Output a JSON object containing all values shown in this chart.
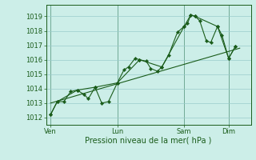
{
  "bg_color": "#cceee8",
  "grid_color": "#99cccc",
  "line_color": "#1a5c1a",
  "marker_color": "#1a5c1a",
  "xlabel": "Pression niveau de la mer( hPa )",
  "ylim": [
    1011.5,
    1019.8
  ],
  "yticks": [
    1012,
    1013,
    1014,
    1015,
    1016,
    1017,
    1018,
    1019
  ],
  "day_labels": [
    "Ven",
    "Lun",
    "Sam",
    "Dim"
  ],
  "day_positions": [
    0,
    3,
    6,
    8
  ],
  "x_vlines": [
    0,
    3,
    6,
    8
  ],
  "xlim": [
    -0.2,
    9.0
  ],
  "series1": [
    [
      0.0,
      1012.2
    ],
    [
      0.3,
      1013.1
    ],
    [
      0.6,
      1013.1
    ],
    [
      0.9,
      1013.8
    ],
    [
      1.2,
      1013.9
    ],
    [
      1.5,
      1013.6
    ],
    [
      1.7,
      1013.3
    ],
    [
      2.0,
      1014.1
    ],
    [
      2.3,
      1013.0
    ],
    [
      2.6,
      1013.1
    ],
    [
      3.0,
      1014.4
    ],
    [
      3.3,
      1015.3
    ],
    [
      3.5,
      1015.5
    ],
    [
      3.8,
      1016.1
    ],
    [
      4.0,
      1016.0
    ],
    [
      4.3,
      1015.9
    ],
    [
      4.5,
      1015.4
    ],
    [
      4.8,
      1015.2
    ],
    [
      5.0,
      1015.5
    ],
    [
      5.3,
      1016.3
    ],
    [
      5.7,
      1017.9
    ],
    [
      6.0,
      1018.3
    ],
    [
      6.15,
      1018.5
    ],
    [
      6.3,
      1019.1
    ],
    [
      6.5,
      1019.0
    ],
    [
      6.7,
      1018.7
    ],
    [
      7.0,
      1017.3
    ],
    [
      7.2,
      1017.2
    ],
    [
      7.5,
      1018.3
    ],
    [
      7.7,
      1017.7
    ],
    [
      8.0,
      1016.1
    ],
    [
      8.3,
      1016.9
    ]
  ],
  "series2_linear": [
    [
      0.0,
      1013.0
    ],
    [
      8.5,
      1016.8
    ]
  ],
  "series3": [
    [
      0.0,
      1012.2
    ],
    [
      0.3,
      1013.1
    ],
    [
      1.2,
      1013.9
    ],
    [
      2.0,
      1014.1
    ],
    [
      3.0,
      1014.4
    ],
    [
      4.0,
      1016.0
    ],
    [
      5.0,
      1015.5
    ],
    [
      6.0,
      1018.3
    ],
    [
      6.3,
      1019.1
    ],
    [
      6.5,
      1019.0
    ],
    [
      7.5,
      1018.3
    ],
    [
      8.0,
      1016.1
    ],
    [
      8.3,
      1016.9
    ]
  ],
  "ylabel_fontsize": 7,
  "tick_fontsize": 6,
  "day_fontsize": 6
}
